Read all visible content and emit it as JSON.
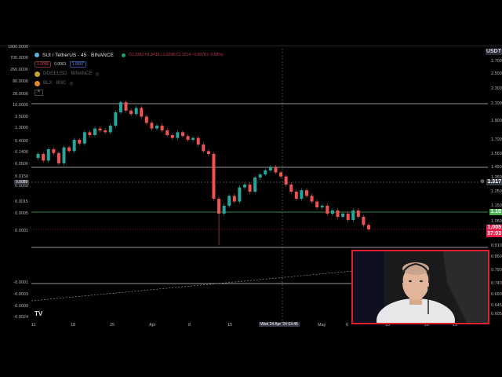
{
  "legend": {
    "symbol": "SUI / TetherUS · 45 · BINANCE",
    "ohlc": "O1.3392 H1.3416 L1.3298 C1.3314 −0.0078 (−0.58%)",
    "bid": "1.0056",
    "spread": "0.0001",
    "ask": "1.0057",
    "overlays": [
      {
        "label": "DOGEUSD · BINANCE",
        "color": "#c9a227"
      },
      {
        "label": "BLX · BNC",
        "color": "#e08a2a"
      }
    ],
    "collapse": "^"
  },
  "right_axis": {
    "currency": "USDT",
    "ticks": [
      "2.700",
      "2.500",
      "2.300",
      "2.100",
      "1.900",
      "1.700",
      "1.550",
      "1.450",
      "1.350",
      "1.250",
      "1.150",
      "1.050",
      "0.910",
      "0.850",
      "0.790",
      "0.740",
      "0.690",
      "0.645",
      "0.605"
    ],
    "crosshair_price": "1.317",
    "green_level": "1.10",
    "last_price": "1.005",
    "countdown": "37:03"
  },
  "left_axis": {
    "ticks": [
      "1900.0000",
      "700.0000",
      "260.0000",
      "80.0000",
      "28.0000",
      "10.0000",
      "3.5000",
      "1.3000",
      "0.4000",
      "0.1400",
      "0.0500",
      "0.0150",
      "0.0050",
      "0.0015",
      "0.0005",
      "0.0001",
      "-0.0001",
      "-0.0003",
      "-0.0009",
      "-0.0024"
    ],
    "crosshair_value": "0.0089"
  },
  "time_axis": {
    "ticks": [
      "11",
      "18",
      "25",
      "Apr",
      "8",
      "15",
      "May",
      "6",
      "13",
      "20",
      "25"
    ],
    "crosshair_time": "Wed 24 Apr '24  03:45"
  },
  "price_series": [
    1.52,
    1.55,
    1.5,
    1.6,
    1.56,
    1.48,
    1.62,
    1.58,
    1.7,
    1.66,
    1.78,
    1.75,
    1.82,
    1.8,
    1.78,
    1.85,
    2.0,
    2.12,
    2.02,
    1.98,
    2.05,
    1.95,
    1.88,
    1.82,
    1.85,
    1.8,
    1.75,
    1.72,
    1.78,
    1.74,
    1.7,
    1.72,
    1.65,
    1.58,
    1.55,
    1.2,
    1.1,
    1.15,
    1.22,
    1.18,
    1.28,
    1.3,
    1.25,
    1.35,
    1.38,
    1.42,
    1.45,
    1.4,
    1.36,
    1.3,
    1.25,
    1.2,
    1.26,
    1.22,
    1.18,
    1.14,
    1.15,
    1.1,
    1.12,
    1.08,
    1.1,
    1.06,
    1.12,
    1.08,
    1.03,
    1.005
  ],
  "colors": {
    "up": "#26a69a",
    "down": "#ef5350",
    "green_level": "#4caf50",
    "last": "#e91e4a"
  },
  "logo": "TV"
}
